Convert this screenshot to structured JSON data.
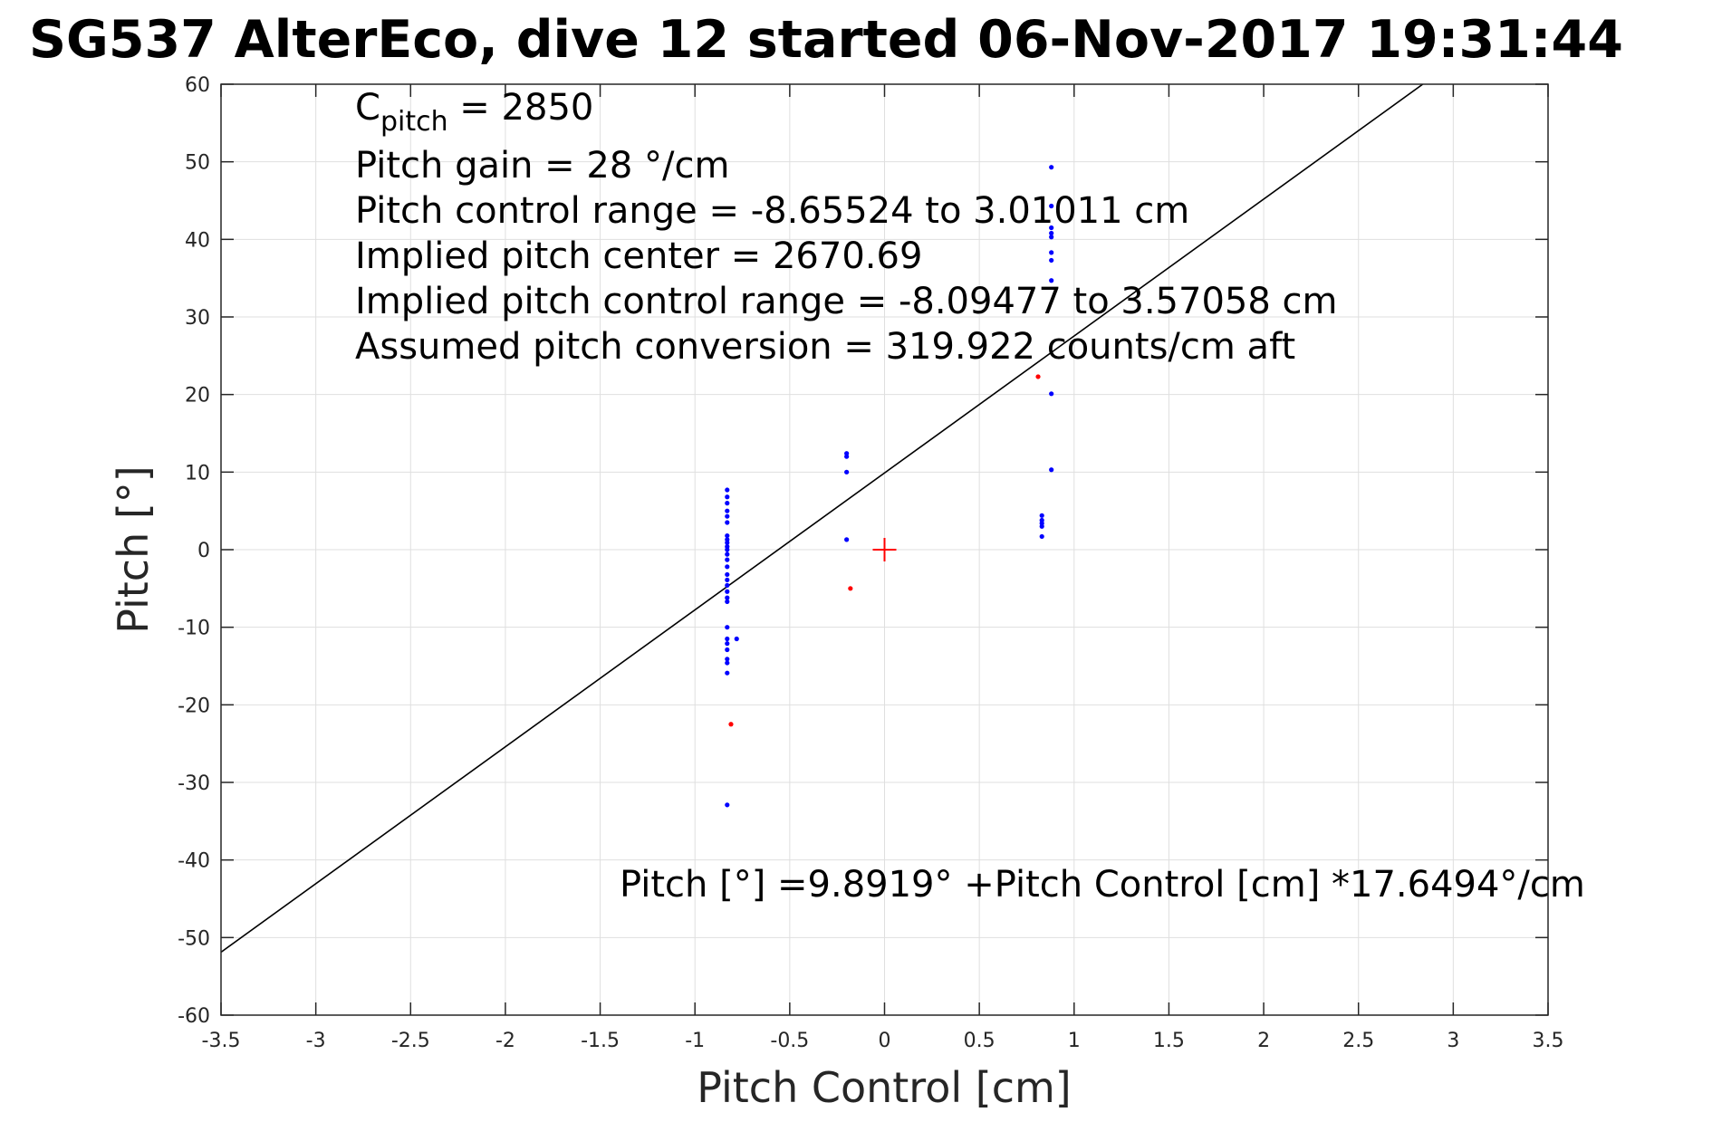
{
  "chart_data": {
    "type": "scatter",
    "title": "SG537 AlterEco, dive 12 started 06-Nov-2017 19:31:44",
    "xlabel": "Pitch Control [cm]",
    "ylabel": "Pitch [°]",
    "xlim": [
      -3.5,
      3.5
    ],
    "ylim": [
      -60,
      60
    ],
    "xticks": [
      -3.5,
      -3,
      -2.5,
      -2,
      -1.5,
      -1,
      -0.5,
      0,
      0.5,
      1,
      1.5,
      2,
      2.5,
      3,
      3.5
    ],
    "yticks": [
      -60,
      -50,
      -40,
      -30,
      -20,
      -10,
      0,
      10,
      20,
      30,
      40,
      50,
      60
    ],
    "xtick_labels": [
      "-3.5",
      "-3",
      "-2.5",
      "-2",
      "-1.5",
      "-1",
      "-0.5",
      "0",
      "0.5",
      "1",
      "1.5",
      "2",
      "2.5",
      "3",
      "3.5"
    ],
    "ytick_labels": [
      "-60",
      "-50",
      "-40",
      "-30",
      "-20",
      "-10",
      "0",
      "10",
      "20",
      "30",
      "40",
      "50",
      "60"
    ],
    "grid": true,
    "annotations": {
      "c_pitch_symbol": "C",
      "c_pitch_subscript": "pitch",
      "c_pitch_value": " = 2850",
      "lines": [
        "Pitch gain = 28 °/cm",
        "Pitch control range = -8.65524 to 3.01011 cm",
        "Implied pitch center = 2670.69",
        "Implied pitch control range = -8.09477 to 3.57058 cm",
        "Assumed pitch conversion = 319.922 counts/cm aft"
      ],
      "fit_equation": "Pitch [°] =9.8919° +Pitch Control [cm] *17.6494°/cm"
    },
    "fit_line": {
      "intercept": 9.8919,
      "slope": 17.6494,
      "color": "#000000"
    },
    "center_marker": {
      "x": 0,
      "y": 0,
      "color": "#ff0000"
    },
    "series": [
      {
        "color": "#0000ff",
        "points": [
          [
            -0.83,
            7.7
          ],
          [
            -0.83,
            6.8
          ],
          [
            -0.83,
            6.0
          ],
          [
            -0.83,
            5.0
          ],
          [
            -0.83,
            4.3
          ],
          [
            -0.83,
            3.5
          ],
          [
            -0.83,
            1.8
          ],
          [
            -0.83,
            1.3
          ],
          [
            -0.83,
            0.9
          ],
          [
            -0.83,
            0.4
          ],
          [
            -0.83,
            0.0
          ],
          [
            -0.83,
            -0.6
          ],
          [
            -0.83,
            -1.3
          ],
          [
            -0.83,
            -2.2
          ],
          [
            -0.83,
            -3.2
          ],
          [
            -0.83,
            -3.9
          ],
          [
            -0.83,
            -4.6
          ],
          [
            -0.83,
            -5.4
          ],
          [
            -0.83,
            -6.2
          ],
          [
            -0.83,
            -6.7
          ],
          [
            -0.83,
            -10.0
          ],
          [
            -0.83,
            -11.5
          ],
          [
            -0.83,
            -12.1
          ],
          [
            -0.83,
            -12.9
          ],
          [
            -0.83,
            -14.1
          ],
          [
            -0.83,
            -14.6
          ],
          [
            -0.83,
            -15.9
          ],
          [
            -0.78,
            -11.5
          ],
          [
            -0.83,
            -32.9
          ],
          [
            -0.2,
            12.4
          ],
          [
            -0.2,
            12.0
          ],
          [
            -0.2,
            10.0
          ],
          [
            -0.2,
            1.3
          ],
          [
            0.88,
            49.3
          ],
          [
            0.88,
            44.3
          ],
          [
            0.88,
            41.5
          ],
          [
            0.88,
            40.8
          ],
          [
            0.88,
            40.3
          ],
          [
            0.88,
            38.3
          ],
          [
            0.88,
            37.3
          ],
          [
            0.88,
            34.7
          ],
          [
            0.88,
            20.1
          ],
          [
            0.88,
            10.3
          ],
          [
            0.83,
            4.4
          ],
          [
            0.83,
            3.8
          ],
          [
            0.83,
            3.4
          ],
          [
            0.83,
            3.0
          ],
          [
            0.83,
            1.7
          ]
        ]
      },
      {
        "color": "#ff0000",
        "points": [
          [
            0.81,
            22.3
          ],
          [
            -0.18,
            -5.0
          ],
          [
            -0.81,
            -22.5
          ]
        ]
      }
    ]
  }
}
